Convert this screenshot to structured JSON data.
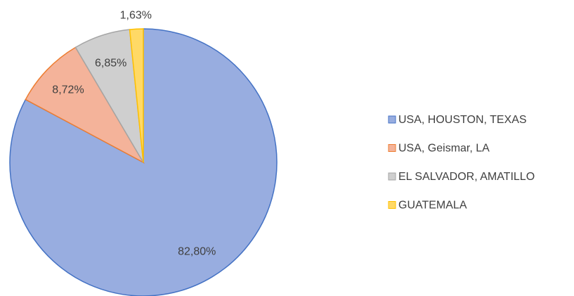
{
  "chart_data": {
    "type": "pie",
    "categories": [
      "USA, HOUSTON, TEXAS",
      "USA, Geismar, LA",
      "EL SALVADOR, AMATILLO",
      "GUATEMALA"
    ],
    "values": [
      82.8,
      8.72,
      6.85,
      1.63
    ],
    "value_labels": [
      "82,80%",
      "8,72%",
      "6,85%",
      "1,63%"
    ],
    "colors": [
      "#98ade0",
      "#f4b39a",
      "#cfcfcf",
      "#ffd966"
    ],
    "edge_colors": [
      "#4472c4",
      "#ed7d31",
      "#a5a5a5",
      "#ffc000"
    ],
    "legend": "right"
  }
}
